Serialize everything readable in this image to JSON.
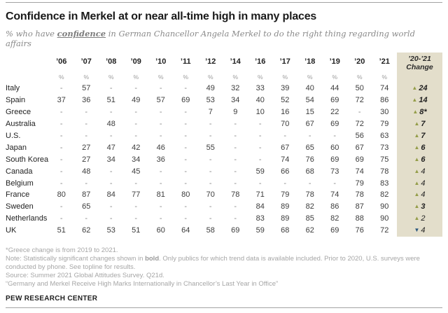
{
  "header": {
    "title": "Confidence in Merkel at or near all-time high in many places",
    "subtitle_prefix": "% who have ",
    "subtitle_emphasis": "confidence",
    "subtitle_suffix": " in German Chancellor Angela Merkel to do the right thing regarding world affairs"
  },
  "colors": {
    "change_column_bg": "#e3decb",
    "increase_green": "#949d48",
    "decrease_blue": "#29567d"
  },
  "icons": {
    "up_triangle": "▲",
    "down_triangle": "▼"
  },
  "chart_data": {
    "type": "table",
    "title": "Confidence in Merkel at or near all-time high in many places",
    "subtitle": "% who have confidence in German Chancellor Angela Merkel to do the right thing regarding world affairs",
    "columns": [
      "’06",
      "’07",
      "’08",
      "’09",
      "’10",
      "’11",
      "’12",
      "’14",
      "’16",
      "’17",
      "’18",
      "’19",
      "’20",
      "’21"
    ],
    "unit_label": "%",
    "change_header_line1": "’20-’21",
    "change_header_line2": "Change",
    "rows": [
      {
        "country": "Italy",
        "values": [
          "-",
          "57",
          "-",
          "-",
          "-",
          "-",
          "49",
          "32",
          "33",
          "39",
          "40",
          "44",
          "50",
          "74"
        ],
        "change": {
          "value": "24",
          "direction": "up",
          "significant": true,
          "suffix": ""
        }
      },
      {
        "country": "Spain",
        "values": [
          "37",
          "36",
          "51",
          "49",
          "57",
          "69",
          "53",
          "34",
          "40",
          "52",
          "54",
          "69",
          "72",
          "86"
        ],
        "change": {
          "value": "14",
          "direction": "up",
          "significant": true,
          "suffix": ""
        }
      },
      {
        "country": "Greece",
        "values": [
          "-",
          "-",
          "-",
          "-",
          "-",
          "-",
          "7",
          "9",
          "10",
          "16",
          "15",
          "22",
          "-",
          "30"
        ],
        "change": {
          "value": "8",
          "direction": "up",
          "significant": true,
          "suffix": "*"
        }
      },
      {
        "country": "Australia",
        "values": [
          "-",
          "-",
          "48",
          "-",
          "-",
          "-",
          "-",
          "-",
          "-",
          "70",
          "67",
          "69",
          "72",
          "79"
        ],
        "change": {
          "value": "7",
          "direction": "up",
          "significant": true,
          "suffix": ""
        }
      },
      {
        "country": "U.S.",
        "values": [
          "-",
          "-",
          "-",
          "-",
          "-",
          "-",
          "-",
          "-",
          "-",
          "-",
          "-",
          "-",
          "56",
          "63"
        ],
        "change": {
          "value": "7",
          "direction": "up",
          "significant": true,
          "suffix": ""
        }
      },
      {
        "country": "Japan",
        "values": [
          "-",
          "27",
          "47",
          "42",
          "46",
          "-",
          "55",
          "-",
          "-",
          "67",
          "65",
          "60",
          "67",
          "73"
        ],
        "change": {
          "value": "6",
          "direction": "up",
          "significant": true,
          "suffix": ""
        }
      },
      {
        "country": "South Korea",
        "values": [
          "-",
          "27",
          "34",
          "34",
          "36",
          "-",
          "-",
          "-",
          "-",
          "74",
          "76",
          "69",
          "69",
          "75"
        ],
        "change": {
          "value": "6",
          "direction": "up",
          "significant": true,
          "suffix": ""
        }
      },
      {
        "country": "Canada",
        "values": [
          "-",
          "48",
          "-",
          "45",
          "-",
          "-",
          "-",
          "-",
          "59",
          "66",
          "68",
          "73",
          "74",
          "78"
        ],
        "change": {
          "value": "4",
          "direction": "up",
          "significant": false,
          "suffix": ""
        }
      },
      {
        "country": "Belgium",
        "values": [
          "-",
          "-",
          "-",
          "-",
          "-",
          "-",
          "-",
          "-",
          "-",
          "-",
          "-",
          "-",
          "79",
          "83"
        ],
        "change": {
          "value": "4",
          "direction": "up",
          "significant": false,
          "suffix": ""
        }
      },
      {
        "country": "France",
        "values": [
          "80",
          "87",
          "84",
          "77",
          "81",
          "80",
          "70",
          "78",
          "71",
          "79",
          "78",
          "74",
          "78",
          "82"
        ],
        "change": {
          "value": "4",
          "direction": "up",
          "significant": false,
          "suffix": ""
        }
      },
      {
        "country": "Sweden",
        "values": [
          "-",
          "65",
          "-",
          "-",
          "-",
          "-",
          "-",
          "-",
          "84",
          "89",
          "82",
          "86",
          "87",
          "90"
        ],
        "change": {
          "value": "3",
          "direction": "up",
          "significant": true,
          "suffix": ""
        }
      },
      {
        "country": "Netherlands",
        "values": [
          "-",
          "-",
          "-",
          "-",
          "-",
          "-",
          "-",
          "-",
          "83",
          "89",
          "85",
          "82",
          "88",
          "90"
        ],
        "change": {
          "value": "2",
          "direction": "up",
          "significant": false,
          "suffix": ""
        }
      },
      {
        "country": "UK",
        "values": [
          "51",
          "62",
          "53",
          "51",
          "60",
          "64",
          "58",
          "69",
          "59",
          "68",
          "62",
          "69",
          "76",
          "72"
        ],
        "change": {
          "value": "4",
          "direction": "down",
          "significant": false,
          "suffix": ""
        }
      }
    ]
  },
  "footnotes": {
    "greece": "*Greece change is from 2019 to 2021.",
    "note_prefix": "Note: Statistically significant changes shown in ",
    "note_bold": "bold",
    "note_suffix": ". Only publics for which trend data is available included. Prior to 2020, U.S. surveys were conducted by phone. See topline for results.",
    "source": "Source: Summer 2021 Global Attitudes Survey. Q21d.",
    "report": "“Germany and Merkel Receive High Marks Internationally in Chancellor’s Last Year in Office”"
  },
  "footer": {
    "brand": "PEW RESEARCH CENTER"
  }
}
